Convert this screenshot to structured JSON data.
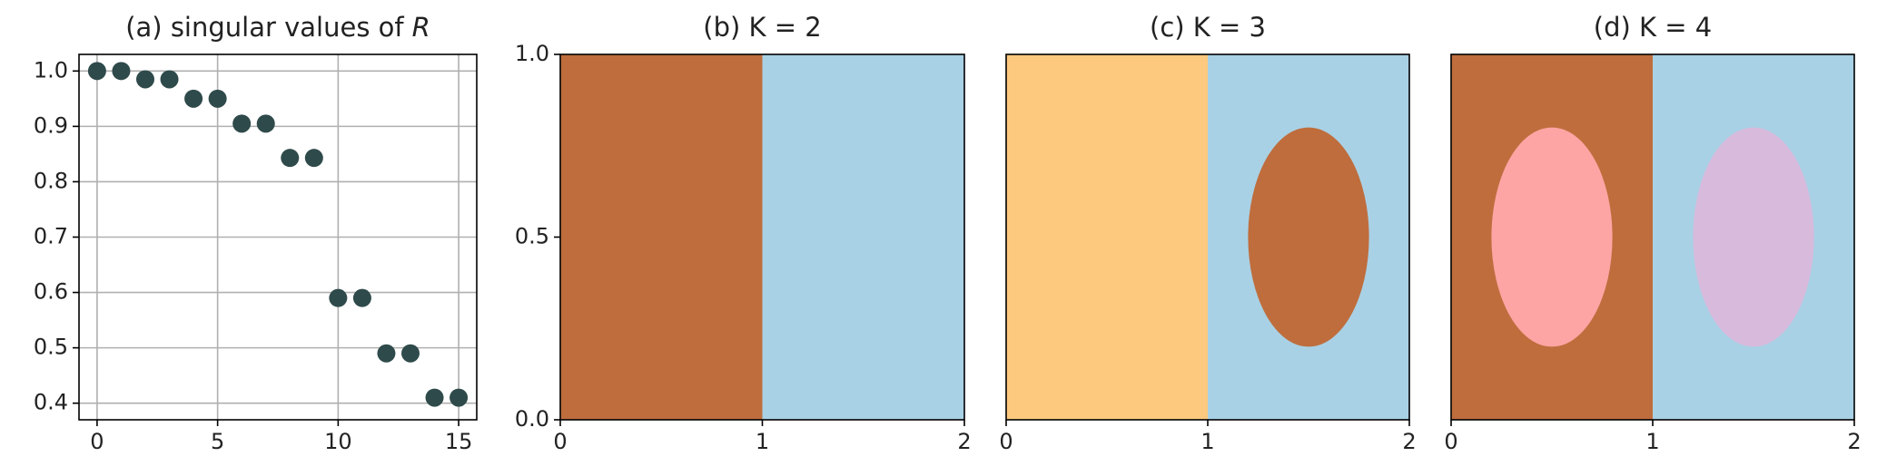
{
  "chart_data": [
    {
      "type": "scatter",
      "title": "(a) singular values of",
      "title_math": "R",
      "x": [
        0,
        1,
        2,
        3,
        4,
        5,
        6,
        7,
        8,
        9,
        10,
        11,
        12,
        13,
        14,
        15
      ],
      "values": [
        1.0,
        1.0,
        0.985,
        0.985,
        0.95,
        0.95,
        0.905,
        0.905,
        0.843,
        0.843,
        0.59,
        0.59,
        0.49,
        0.49,
        0.41,
        0.41
      ],
      "color": "#2f4a4a",
      "grid": true,
      "xlim": [
        -0.75,
        15.75
      ],
      "xticks": [
        0,
        5,
        10,
        15
      ],
      "ylim": [
        0.37,
        1.03
      ],
      "yticks": [
        {
          "value": 0.4,
          "label": "0.4"
        },
        {
          "value": 0.5,
          "label": "0.5"
        },
        {
          "value": 0.6,
          "label": "0.6"
        },
        {
          "value": 0.7,
          "label": "0.7"
        },
        {
          "value": 0.8,
          "label": "0.8"
        },
        {
          "value": 0.9,
          "label": "0.9"
        },
        {
          "value": 1.0,
          "label": "1.0"
        }
      ]
    },
    {
      "type": "regions",
      "title": "(b) K = 2",
      "xlim": [
        0,
        2
      ],
      "ylim": [
        0,
        1
      ],
      "xticks": [
        0,
        1,
        2
      ],
      "yticks": [
        {
          "value": 0,
          "label": "0.0"
        },
        {
          "value": 0.5,
          "label": "0.5"
        },
        {
          "value": 1,
          "label": "1.0"
        }
      ],
      "shapes": [
        {
          "shape": "rect",
          "x": [
            0,
            1
          ],
          "y": [
            0,
            1
          ],
          "color": "#bf6d3d"
        },
        {
          "shape": "rect",
          "x": [
            1,
            2
          ],
          "y": [
            0,
            1
          ],
          "color": "#a9d1e5"
        }
      ]
    },
    {
      "type": "regions",
      "title": "(c) K = 3",
      "xlim": [
        0,
        2
      ],
      "ylim": [
        0,
        1
      ],
      "xticks": [
        0,
        1,
        2
      ],
      "shapes": [
        {
          "shape": "rect",
          "x": [
            0,
            1
          ],
          "y": [
            0,
            1
          ],
          "color": "#fdc97f"
        },
        {
          "shape": "rect",
          "x": [
            1,
            2
          ],
          "y": [
            0,
            1
          ],
          "color": "#a9d1e5"
        },
        {
          "shape": "ellipse",
          "center": [
            1.5,
            0.5
          ],
          "radius": [
            0.3,
            0.3
          ],
          "color": "#bf6d3d"
        }
      ]
    },
    {
      "type": "regions",
      "title": "(d) K = 4",
      "xlim": [
        0,
        2
      ],
      "ylim": [
        0,
        1
      ],
      "xticks": [
        0,
        1,
        2
      ],
      "shapes": [
        {
          "shape": "rect",
          "x": [
            0,
            1
          ],
          "y": [
            0,
            1
          ],
          "color": "#bf6d3d"
        },
        {
          "shape": "rect",
          "x": [
            1,
            2
          ],
          "y": [
            0,
            1
          ],
          "color": "#a9d1e5"
        },
        {
          "shape": "ellipse",
          "center": [
            0.5,
            0.5
          ],
          "radius": [
            0.3,
            0.3
          ],
          "color": "#fca5a4"
        },
        {
          "shape": "ellipse",
          "center": [
            1.5,
            0.5
          ],
          "radius": [
            0.3,
            0.3
          ],
          "color": "#d7badc"
        }
      ]
    }
  ]
}
